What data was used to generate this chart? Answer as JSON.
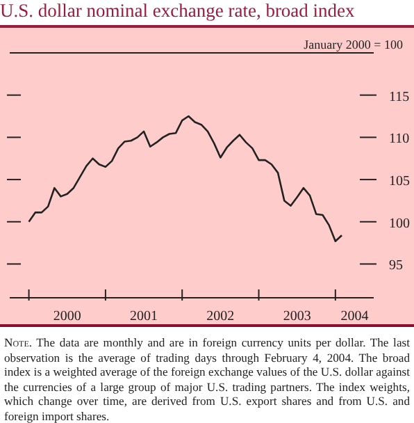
{
  "chart_data": {
    "type": "line",
    "title": "U.S. dollar nominal exchange rate, broad index",
    "x": [
      "2000-01",
      "2000-02",
      "2000-03",
      "2000-04",
      "2000-05",
      "2000-06",
      "2000-07",
      "2000-08",
      "2000-09",
      "2000-10",
      "2000-11",
      "2000-12",
      "2001-01",
      "2001-02",
      "2001-03",
      "2001-04",
      "2001-05",
      "2001-06",
      "2001-07",
      "2001-08",
      "2001-09",
      "2001-10",
      "2001-11",
      "2001-12",
      "2002-01",
      "2002-02",
      "2002-03",
      "2002-04",
      "2002-05",
      "2002-06",
      "2002-07",
      "2002-08",
      "2002-09",
      "2002-10",
      "2002-11",
      "2002-12",
      "2003-01",
      "2003-02",
      "2003-03",
      "2003-04",
      "2003-05",
      "2003-06",
      "2003-07",
      "2003-08",
      "2003-09",
      "2003-10",
      "2003-11",
      "2003-12",
      "2004-01",
      "2004-02"
    ],
    "series": [
      {
        "color": "#222222",
        "values": [
          100.0,
          101.1,
          101.1,
          101.8,
          104.0,
          103.0,
          103.3,
          104.0,
          105.3,
          106.6,
          107.5,
          106.8,
          106.5,
          107.2,
          108.7,
          109.5,
          109.6,
          110.0,
          110.7,
          108.9,
          109.4,
          110.0,
          110.4,
          110.5,
          112.0,
          112.5,
          111.8,
          111.5,
          110.7,
          109.3,
          107.6,
          108.8,
          109.6,
          110.3,
          109.4,
          108.7,
          107.3,
          107.3,
          106.8,
          105.8,
          102.5,
          101.9,
          102.9,
          104.0,
          103.1,
          100.9,
          100.8,
          99.6,
          97.7,
          98.4
        ]
      }
    ],
    "xlim": [
      "1999-10",
      "2004-07"
    ],
    "xticks": [
      {
        "value": "2000-01",
        "label": null
      },
      {
        "value": "2000-07",
        "label": "2000"
      },
      {
        "value": "2001-01",
        "label": null
      },
      {
        "value": "2001-07",
        "label": "2001"
      },
      {
        "value": "2002-01",
        "label": null
      },
      {
        "value": "2002-07",
        "label": "2002"
      },
      {
        "value": "2003-01",
        "label": null
      },
      {
        "value": "2003-07",
        "label": "2003"
      },
      {
        "value": "2004-01",
        "label": null
      },
      {
        "value": "2004-04",
        "label": "2004"
      }
    ],
    "ylim": [
      91,
      120
    ],
    "yticks": [
      95,
      100,
      105,
      110,
      115
    ],
    "grid": false,
    "legend": false,
    "annotations": [
      "January 2000 = 100",
      "Note. The data are monthly and are in foreign currency units per dollar. The last observation is the average of trading days through February 4, 2004. The broad index is a weighted average of the foreign exchange values of the U.S. dollar against the currencies of a large group of major U.S. trading partners. The index weights, which change over time, are derived from U.S. export shares and from U.S. and foreign import shares."
    ]
  }
}
